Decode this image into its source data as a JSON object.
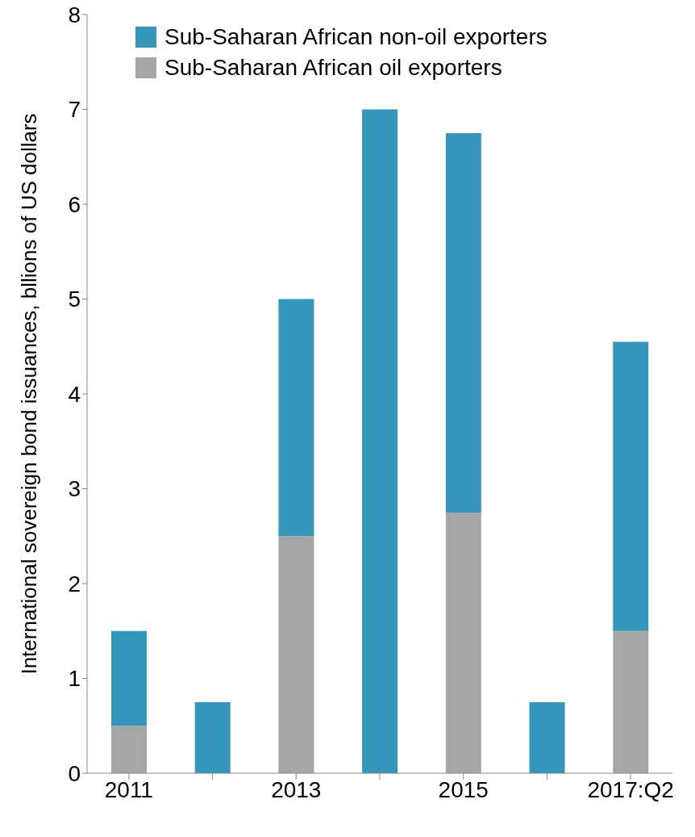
{
  "chart_data": {
    "type": "bar",
    "stacked": true,
    "ylabel": "International sovereign bond issuances, bllions of US dollars",
    "categories": [
      "2011",
      null,
      "2013",
      null,
      "2015",
      null,
      "2017:Q2"
    ],
    "series": [
      {
        "name": "Sub-Saharan African oil exporters",
        "color": "#a6a6a6",
        "values": [
          0.5,
          null,
          2.5,
          null,
          2.75,
          null,
          1.5
        ]
      },
      {
        "name": "Sub-Saharan African non-oil exporters",
        "color": "#3596bc",
        "values": [
          1.0,
          0.75,
          2.5,
          7.0,
          4.0,
          0.75,
          3.05
        ]
      }
    ],
    "ylim": [
      0,
      8
    ],
    "yticks": [
      0,
      1,
      2,
      3,
      4,
      5,
      6,
      7,
      8
    ],
    "grid": false,
    "legend": "top left"
  }
}
